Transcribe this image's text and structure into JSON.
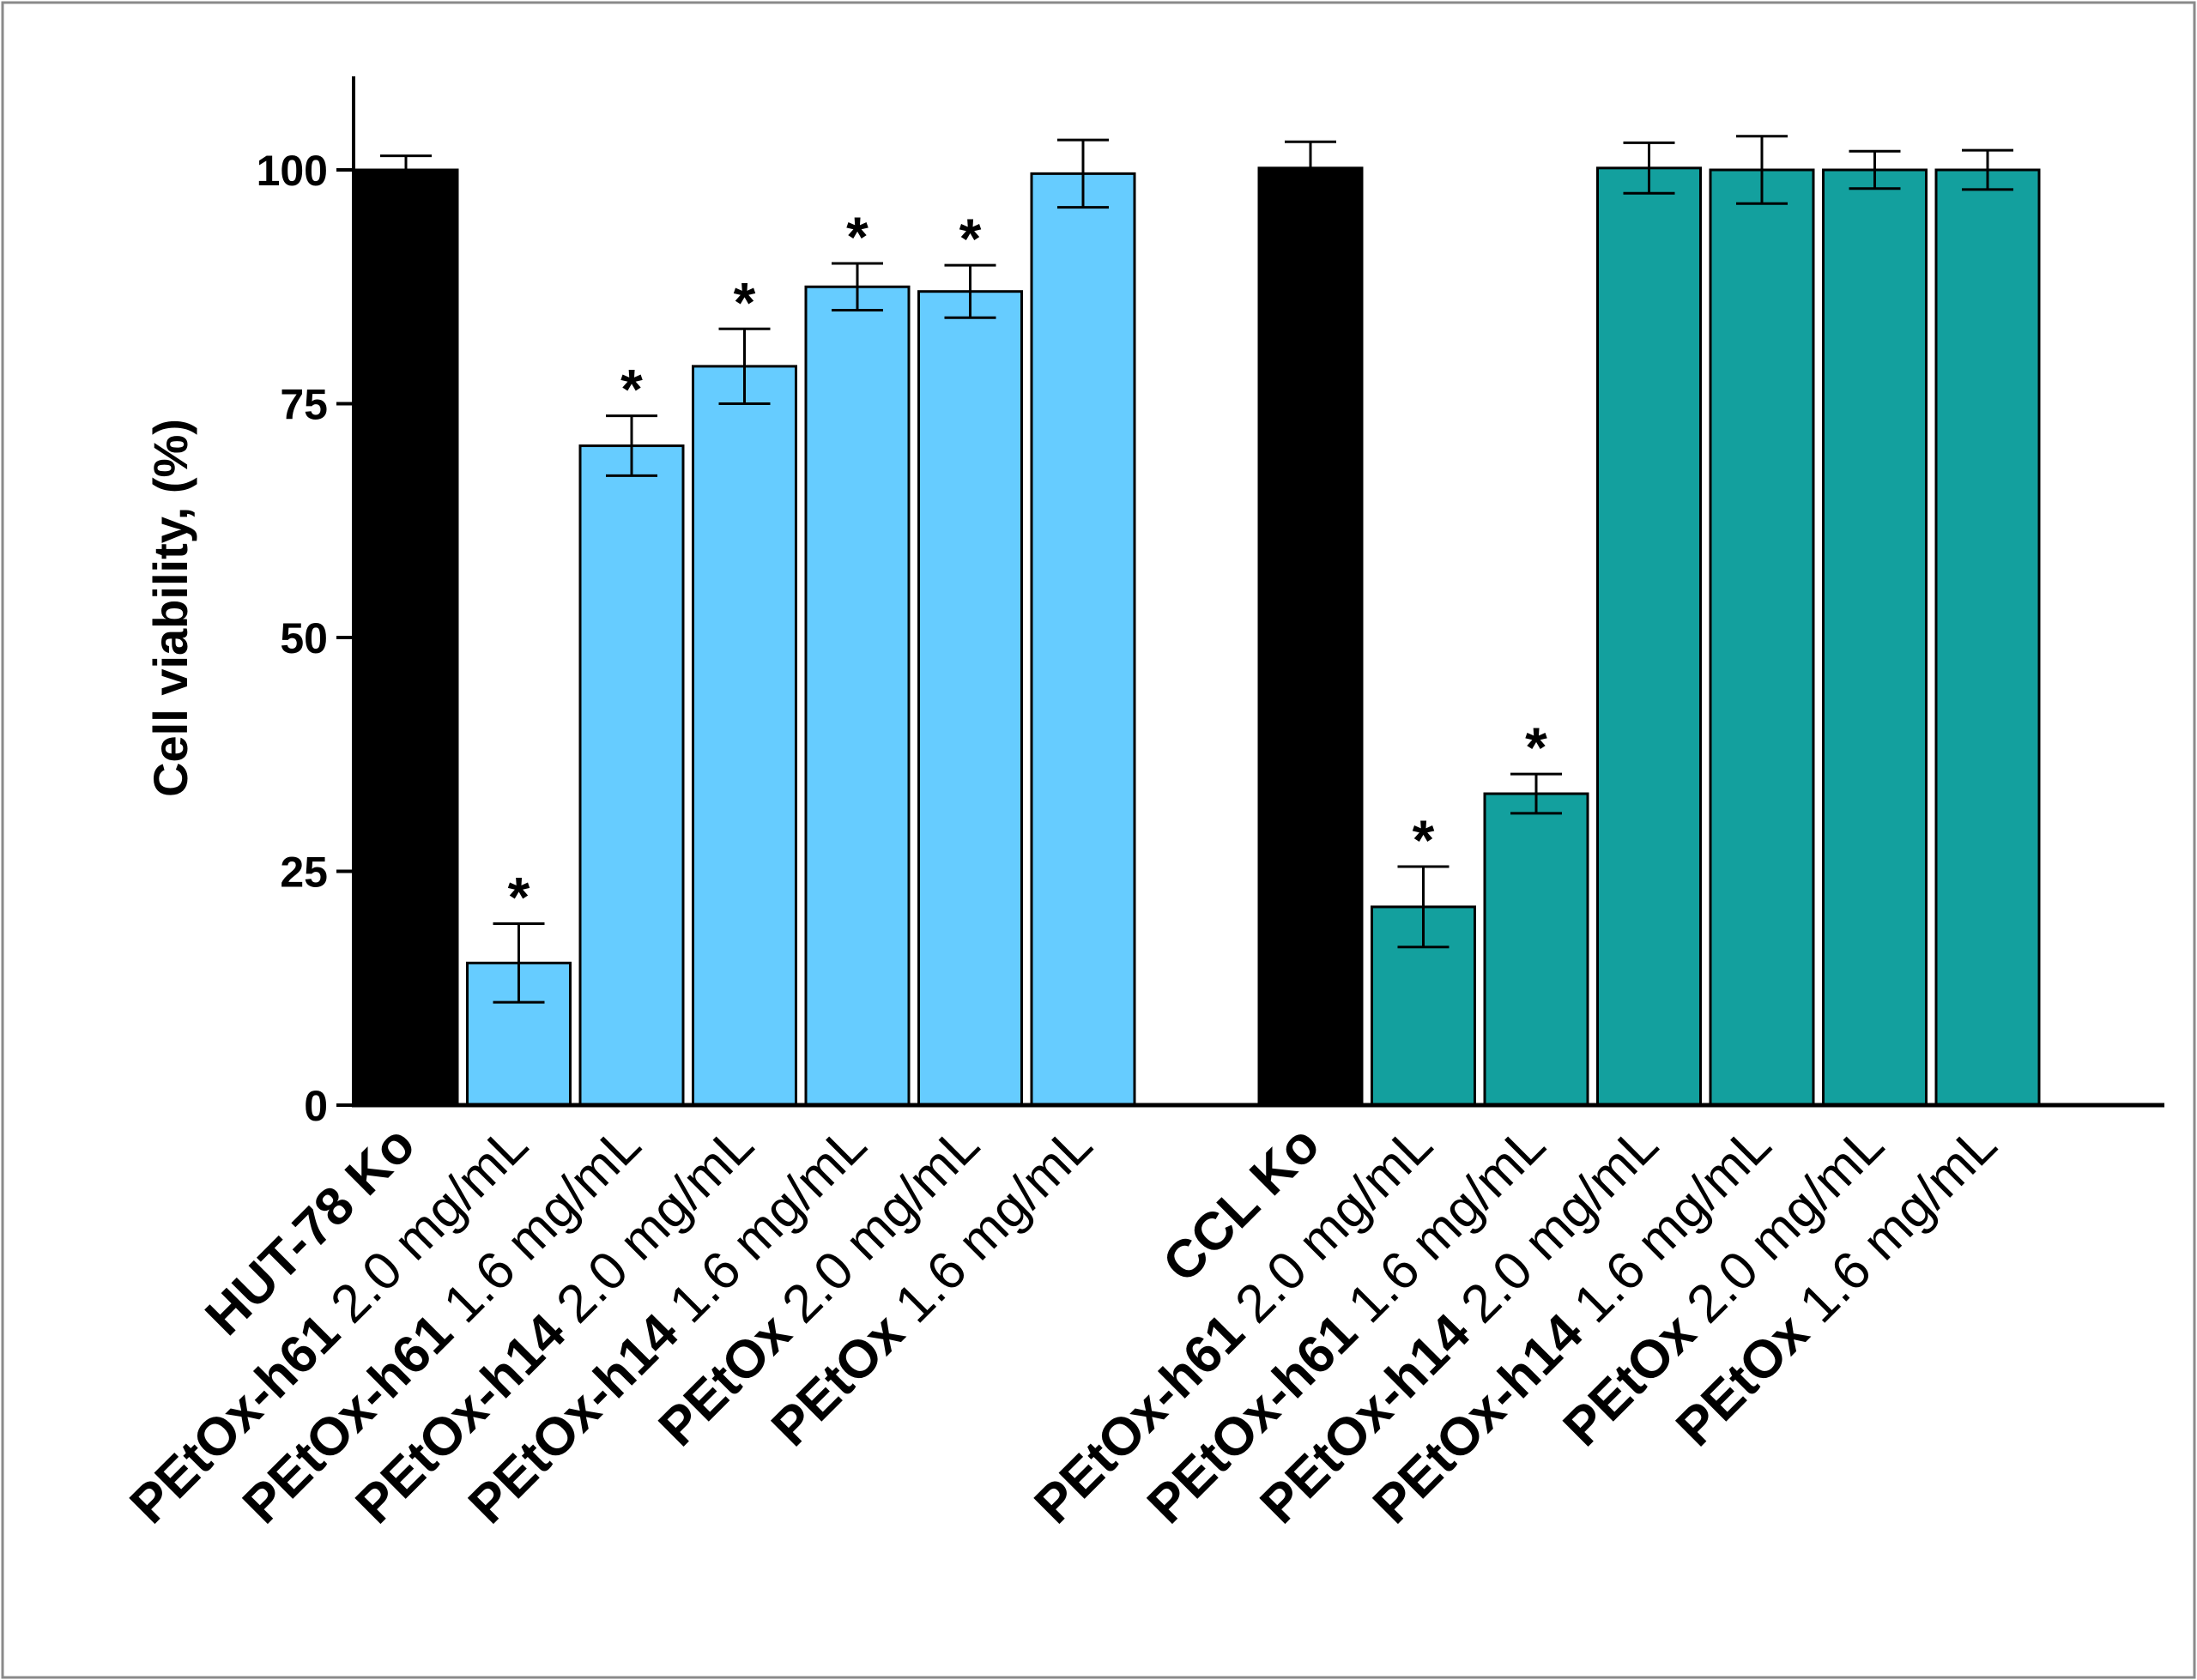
{
  "chart_data": {
    "type": "bar",
    "title": "",
    "xlabel": "",
    "ylabel": "Cell viability, (%)",
    "ylim": [
      0,
      110
    ],
    "yticks": [
      0,
      25,
      50,
      75,
      100
    ],
    "grid": false,
    "legend": "none",
    "significance_marker": "*",
    "groups": [
      {
        "name": "HUT-78",
        "color": "#66CCFF",
        "bars": [
          {
            "label_bold": "HUT-78 Ko",
            "label_rest": "",
            "value": 100,
            "error": 1.5,
            "significant": false,
            "control": true
          },
          {
            "label_bold": "PEtOx-h61",
            "label_rest": " 2.0 mg/mL",
            "value": 15.2,
            "error": 4.2,
            "significant": true,
            "control": false
          },
          {
            "label_bold": "PEtOx-h61",
            "label_rest": " 1.6 mg/mL",
            "value": 70.5,
            "error": 3.2,
            "significant": true,
            "control": false
          },
          {
            "label_bold": "PEtOx-h14",
            "label_rest": " 2.0 mg/mL",
            "value": 79.0,
            "error": 4.0,
            "significant": true,
            "control": false
          },
          {
            "label_bold": "PEtOx-h14",
            "label_rest": " 1.6 mg/mL",
            "value": 87.5,
            "error": 2.5,
            "significant": true,
            "control": false
          },
          {
            "label_bold": "PEtOx",
            "label_rest": " 2.0 mg/mL",
            "value": 87.0,
            "error": 2.8,
            "significant": true,
            "control": false
          },
          {
            "label_bold": "PEtOx",
            "label_rest": " 1.6 mg/mL",
            "value": 99.6,
            "error": 3.6,
            "significant": false,
            "control": false
          }
        ]
      },
      {
        "name": "CCL",
        "color": "#13A09E",
        "bars": [
          {
            "label_bold": "CCL Ko",
            "label_rest": "",
            "value": 100.2,
            "error": 2.8,
            "significant": false,
            "control": true
          },
          {
            "label_bold": "PEtOx-h61",
            "label_rest": " 2.0 mg/mL",
            "value": 21.2,
            "error": 4.3,
            "significant": true,
            "control": false
          },
          {
            "label_bold": "PEtOx-h61",
            "label_rest": " 1.6 mg/mL",
            "value": 33.3,
            "error": 2.1,
            "significant": true,
            "control": false
          },
          {
            "label_bold": "PEtOx-h14",
            "label_rest": " 2.0 mg/mL",
            "value": 100.2,
            "error": 2.7,
            "significant": false,
            "control": false
          },
          {
            "label_bold": "PEtOx-h14",
            "label_rest": " 1.6 mg/mL",
            "value": 100.0,
            "error": 3.6,
            "significant": false,
            "control": false
          },
          {
            "label_bold": "PEtOx",
            "label_rest": " 2.0 mg/mL",
            "value": 100.0,
            "error": 2.0,
            "significant": false,
            "control": false
          },
          {
            "label_bold": "PEtOx",
            "label_rest": " 1.6 mg/mL",
            "value": 100.0,
            "error": 2.1,
            "significant": false,
            "control": false
          }
        ]
      }
    ],
    "control_color": "#000000"
  }
}
